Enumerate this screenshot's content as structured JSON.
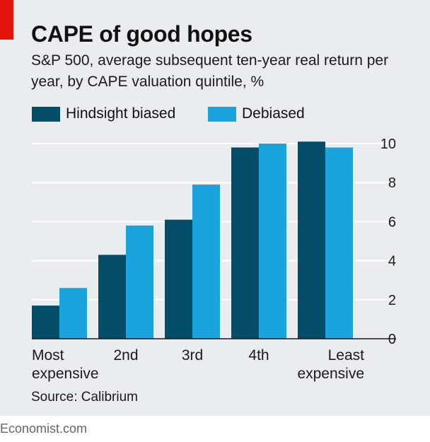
{
  "header": {
    "title": "CAPE of good hopes",
    "subtitle": "S&P 500, average subsequent ten-year real return per year, by CAPE valuation quintile, %"
  },
  "legend": [
    {
      "label": "Hindsight biased",
      "color": "#044d68"
    },
    {
      "label": "Debiased",
      "color": "#1aa3dc"
    }
  ],
  "chart_data": {
    "type": "bar",
    "title": "CAPE of good hopes",
    "subtitle": "S&P 500, average subsequent ten-year real return per year, by CAPE valuation quintile, %",
    "categories": [
      [
        "Most",
        "expensive"
      ],
      [
        "2nd"
      ],
      [
        "3rd"
      ],
      [
        "4th"
      ],
      [
        "Least",
        "expensive"
      ]
    ],
    "series": [
      {
        "name": "Hindsight biased",
        "color": "#044d68",
        "values": [
          1.7,
          4.3,
          6.1,
          9.8,
          10.1
        ]
      },
      {
        "name": "Debiased",
        "color": "#1aa3dc",
        "values": [
          2.6,
          5.8,
          7.9,
          10.0,
          9.8
        ]
      }
    ],
    "ylim": [
      0,
      10
    ],
    "yticks": [
      0,
      2,
      4,
      6,
      8,
      10
    ],
    "y_axis_side": "right",
    "grid": true,
    "xlabel": "",
    "ylabel": ""
  },
  "source": "Source: Calibrium",
  "footer": "Economist.com"
}
